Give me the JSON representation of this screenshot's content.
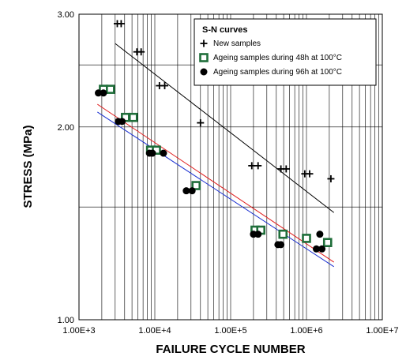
{
  "chart_data": {
    "type": "scatter",
    "title": "",
    "xlabel": "FAILURE CYCLE NUMBER",
    "ylabel": "STRESS (MPa)",
    "x_scale": "log",
    "y_scale": "log",
    "xlim": [
      1000,
      10000000
    ],
    "ylim": [
      1.0,
      3.0
    ],
    "x_ticks": [
      1000,
      10000,
      100000,
      1000000,
      10000000
    ],
    "x_tick_labels": [
      "1.00E+3",
      "1.00E+4",
      "1.00E+5",
      "1.00E+6",
      "1.00E+7"
    ],
    "y_ticks": [
      1.0,
      2.0,
      3.0
    ],
    "y_tick_labels": [
      "1.00",
      "2.00",
      "3.00"
    ],
    "y_grid_values": [
      1.5,
      2.5
    ],
    "grid": true,
    "legend": {
      "title": "S-N curves",
      "placement": "top-right"
    },
    "series": [
      {
        "name": "New samples",
        "marker": "plus",
        "color": "#000000",
        "points": [
          [
            3200,
            2.9
          ],
          [
            3600,
            2.9
          ],
          [
            5800,
            2.62
          ],
          [
            6600,
            2.62
          ],
          [
            11500,
            2.32
          ],
          [
            13500,
            2.32
          ],
          [
            40000,
            2.03
          ],
          [
            190000,
            1.74
          ],
          [
            230000,
            1.74
          ],
          [
            460000,
            1.72
          ],
          [
            540000,
            1.72
          ],
          [
            950000,
            1.69
          ],
          [
            1100000,
            1.69
          ],
          [
            2100000,
            1.66
          ]
        ]
      },
      {
        "name": "Ageing samples during 48h at 100°C",
        "marker": "square",
        "color": "#1f6e3a",
        "points": [
          [
            2100,
            2.29
          ],
          [
            2600,
            2.29
          ],
          [
            4100,
            2.07
          ],
          [
            5200,
            2.07
          ],
          [
            8800,
            1.84
          ],
          [
            10500,
            1.84
          ],
          [
            35000,
            1.62
          ],
          [
            210000,
            1.38
          ],
          [
            250000,
            1.38
          ],
          [
            490000,
            1.36
          ],
          [
            1000000,
            1.34
          ],
          [
            1900000,
            1.32
          ]
        ]
      },
      {
        "name": "Ageing samples during 96h at 100°C",
        "marker": "circle",
        "color": "#000000",
        "points": [
          [
            1800,
            2.26
          ],
          [
            2100,
            2.26
          ],
          [
            3300,
            2.04
          ],
          [
            3700,
            2.04
          ],
          [
            8500,
            1.82
          ],
          [
            9300,
            1.82
          ],
          [
            13000,
            1.82
          ],
          [
            26000,
            1.59
          ],
          [
            31000,
            1.59
          ],
          [
            200000,
            1.36
          ],
          [
            230000,
            1.36
          ],
          [
            420000,
            1.31
          ],
          [
            460000,
            1.31
          ],
          [
            1350000,
            1.29
          ],
          [
            1500000,
            1.36
          ],
          [
            1600000,
            1.29
          ]
        ]
      }
    ],
    "trend_lines": [
      {
        "color": "#000000",
        "points": [
          [
            3000,
            2.7
          ],
          [
            2300000,
            1.47
          ]
        ]
      },
      {
        "color": "#e01b1b",
        "points": [
          [
            1750,
            2.17
          ],
          [
            2300000,
            1.23
          ]
        ]
      },
      {
        "color": "#1a2fd1",
        "points": [
          [
            1750,
            2.11
          ],
          [
            2300000,
            1.21
          ]
        ]
      }
    ]
  }
}
